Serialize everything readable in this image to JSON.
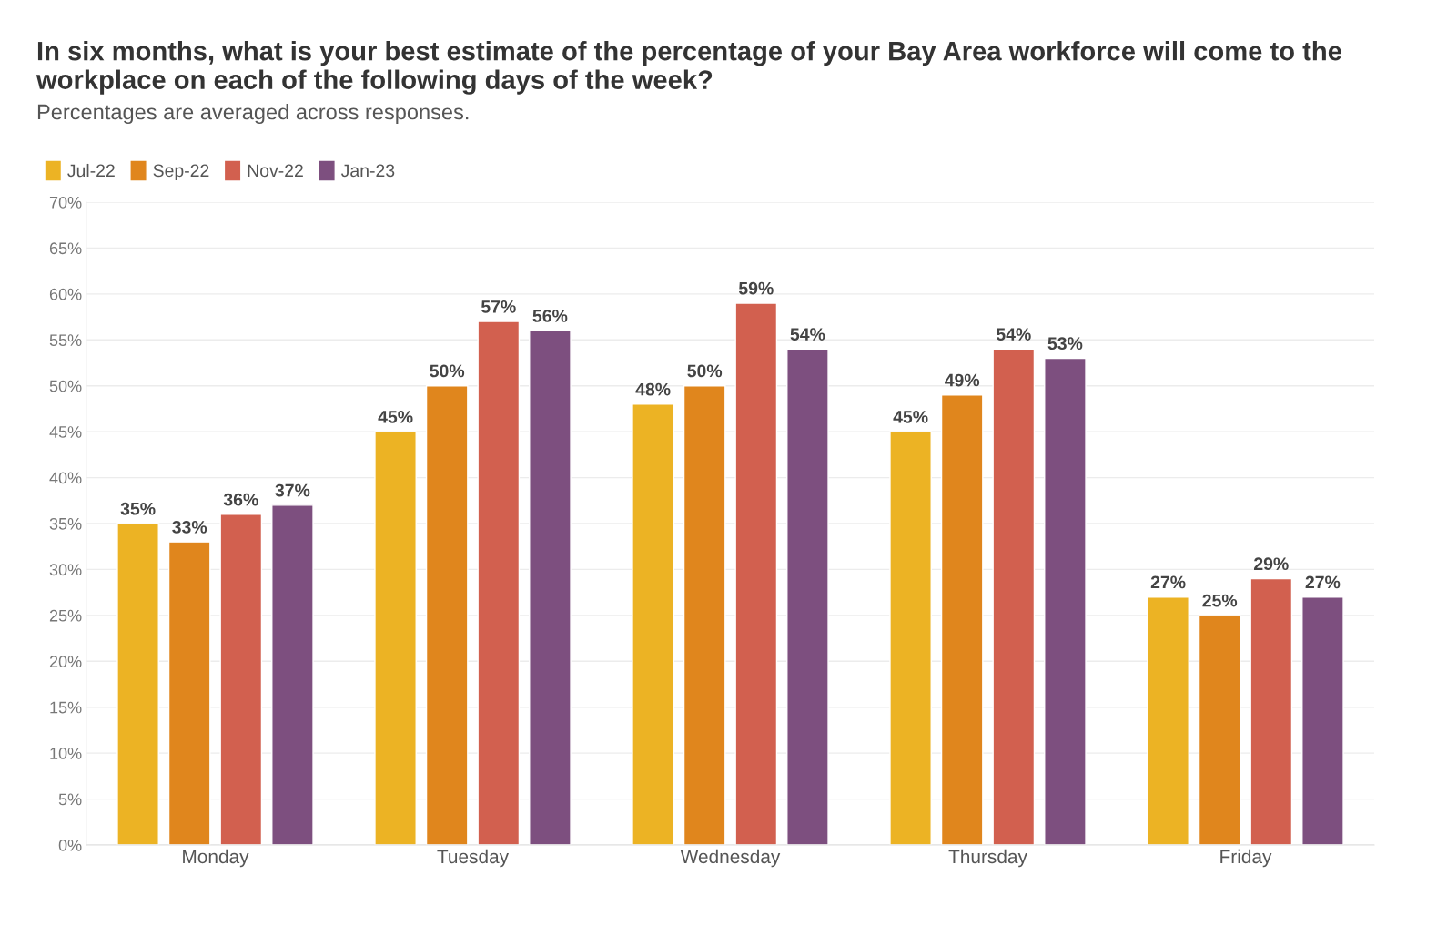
{
  "chart_data": {
    "type": "bar",
    "title": "In six months, what is your best estimate of the percentage of your Bay Area workforce will come to the workplace on each of the following days of the week?",
    "subtitle": "Percentages are averaged across responses.",
    "categories": [
      "Monday",
      "Tuesday",
      "Wednesday",
      "Thursday",
      "Friday"
    ],
    "series": [
      {
        "name": "Jul-22",
        "color": "#ecb324",
        "values": [
          35,
          45,
          48,
          45,
          27
        ],
        "value_labels": [
          "35%",
          "45%",
          "48%",
          "45%",
          "27%"
        ]
      },
      {
        "name": "Sep-22",
        "color": "#e0861d",
        "values": [
          33,
          50,
          50,
          49,
          25
        ],
        "value_labels": [
          "33%",
          "50%",
          "50%",
          "49%",
          "25%"
        ]
      },
      {
        "name": "Nov-22",
        "color": "#d2604f",
        "values": [
          36,
          57,
          59,
          54,
          29
        ],
        "value_labels": [
          "36%",
          "57%",
          "59%",
          "54%",
          "29%"
        ]
      },
      {
        "name": "Jan-23",
        "color": "#7d4f7f",
        "values": [
          37,
          56,
          54,
          53,
          27
        ],
        "value_labels": [
          "37%",
          "56%",
          "54%",
          "53%",
          "27%"
        ]
      }
    ],
    "ylim": [
      0,
      70
    ],
    "yticks": [
      {
        "value": 0,
        "label": "0%"
      },
      {
        "value": 5,
        "label": "5%"
      },
      {
        "value": 10,
        "label": "10%"
      },
      {
        "value": 15,
        "label": "15%"
      },
      {
        "value": 20,
        "label": "20%"
      },
      {
        "value": 25,
        "label": "25%"
      },
      {
        "value": 30,
        "label": "30%"
      },
      {
        "value": 35,
        "label": "35%"
      },
      {
        "value": 40,
        "label": "40%"
      },
      {
        "value": 45,
        "label": "45%"
      },
      {
        "value": 50,
        "label": "50%"
      },
      {
        "value": 55,
        "label": "55%"
      },
      {
        "value": 60,
        "label": "60%"
      },
      {
        "value": 65,
        "label": "65%"
      },
      {
        "value": 70,
        "label": "70%"
      }
    ],
    "grid": "y",
    "legend": "top left"
  }
}
